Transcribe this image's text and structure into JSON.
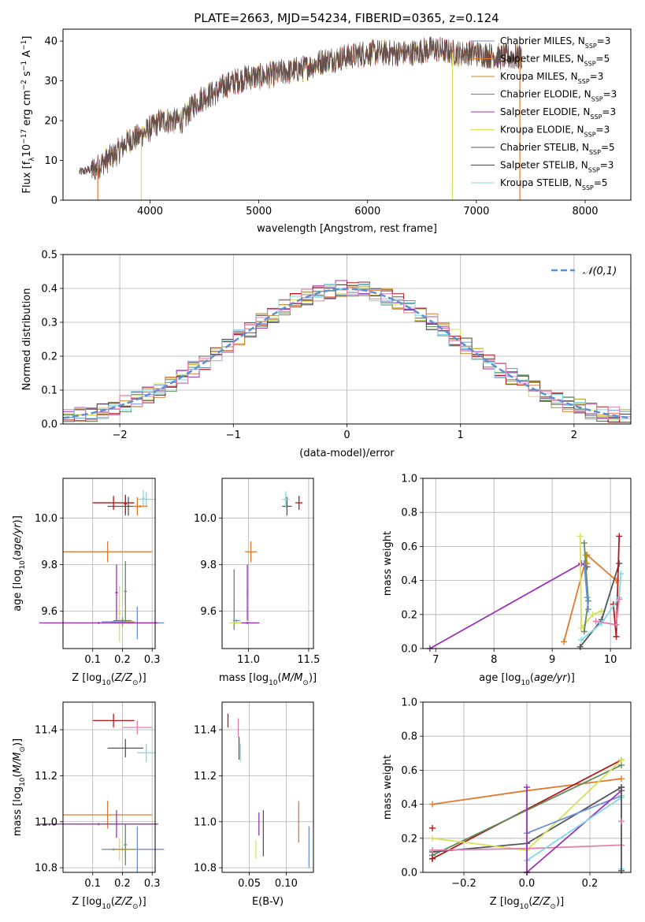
{
  "figure": {
    "title": "PLATE=2663, MJD=54234, FIBERID=0365, z=0.124"
  },
  "series_styles": [
    {
      "name": "Chabrier MILES",
      "nssp": "3",
      "color": "#6b8fd6"
    },
    {
      "name": "Salpeter MILES",
      "nssp": "5",
      "color": "#e07a2c"
    },
    {
      "name": "Kroupa MILES",
      "nssp": "3",
      "color": "#b8901e"
    },
    {
      "name": "Chabrier ELODIE",
      "nssp": "3",
      "color": "#5e8e5e"
    },
    {
      "name": "Salpeter ELODIE",
      "nssp": "3",
      "color": "#9b30b8"
    },
    {
      "name": "Kroupa ELODIE",
      "nssp": "3",
      "color": "#d8e05a"
    },
    {
      "name": "Chabrier STELIB",
      "nssp": "5",
      "color": "#555555"
    },
    {
      "name": "Salpeter STELIB",
      "nssp": "3",
      "color": "#b01a1a"
    },
    {
      "name": "Kroupa STELIB",
      "nssp": "5",
      "color": "#7ed8e8"
    }
  ],
  "chart_data": [
    {
      "id": "spectrum",
      "type": "line",
      "xlabel": "wavelength [Angstrom, rest frame]",
      "ylabel": "Flux [f_λ 10^-17 erg cm^-2 s^-1 A^-1]",
      "xlim": [
        3200,
        8420
      ],
      "ylim": [
        0,
        43
      ],
      "xticks": [
        4000,
        5000,
        6000,
        7000,
        8000
      ],
      "yticks": [
        0,
        10,
        20,
        30,
        40
      ],
      "grid": false,
      "legend": "top-right",
      "observed_continuum": {
        "x": [
          3350,
          3500,
          3600,
          3700,
          3800,
          3900,
          4000,
          4100,
          4200,
          4300,
          4400,
          4500,
          4600,
          4700,
          4800,
          4900,
          5000,
          5200,
          5400,
          5600,
          5800,
          6000,
          6200,
          6400,
          6600,
          6800,
          7000,
          7200,
          7400
        ],
        "y": [
          7,
          8,
          10,
          12,
          15,
          16,
          18,
          20,
          20,
          20,
          24,
          26,
          27,
          29,
          30,
          31,
          31,
          32,
          33,
          35,
          36,
          37,
          37,
          37,
          38,
          37,
          37,
          36,
          36
        ]
      },
      "model_dropouts": [
        {
          "x": 3520,
          "series": 1
        },
        {
          "x": 3920,
          "series": 5
        },
        {
          "x": 6780,
          "series": 5
        },
        {
          "x": 7400,
          "series": 1
        }
      ]
    },
    {
      "id": "residual_hist",
      "type": "line",
      "xlabel": "(data-model)/error",
      "ylabel": "Normed distribution",
      "xlim": [
        -2.5,
        2.5
      ],
      "ylim": [
        0,
        0.5
      ],
      "xticks": [
        -2,
        -1,
        0,
        1,
        2
      ],
      "yticks": [
        0.0,
        0.1,
        0.2,
        0.3,
        0.4,
        0.5
      ],
      "grid": true,
      "legend": "top-right",
      "reference_label": "𝒩(0,1)",
      "reference_color": "#5b8fd6",
      "bins": 50
    },
    {
      "id": "age_vs_Z",
      "type": "scatter",
      "xlabel": "Z [log10(Z/Z⊙)]",
      "ylabel": "age [log10(age/yr)]",
      "xlim": [
        0.0,
        0.31
      ],
      "ylim": [
        9.44,
        10.17
      ],
      "xticks": [
        0.1,
        0.2,
        0.3
      ],
      "yticks": [
        9.6,
        9.8,
        10.0
      ],
      "grid": true,
      "points": [
        {
          "series": 0,
          "x": 0.25,
          "y": 9.55,
          "xerr": 0.09,
          "yerr": 0.07
        },
        {
          "series": 1,
          "x": 0.15,
          "y": 9.855,
          "xerr": 0.15,
          "yerr": 0.045
        },
        {
          "series": 2,
          "x": 0.2,
          "y": 9.555,
          "xerr": 0.04,
          "yerr": 0.02
        },
        {
          "series": 3,
          "x": 0.21,
          "y": 9.685,
          "xerr": 0.005,
          "yerr": 0.13
        },
        {
          "series": 4,
          "x": 0.18,
          "y": 9.68,
          "xerr": 0.005,
          "yerr": 0.12
        },
        {
          "series": 5,
          "x": 0.19,
          "y": 9.59,
          "xerr": 0.005,
          "yerr": 0.12
        },
        {
          "series": 6,
          "x": 0.21,
          "y": 10.05,
          "xerr": 0.06,
          "yerr": 0.04
        },
        {
          "series": 7,
          "x": 0.17,
          "y": 10.065,
          "xerr": 0.07,
          "yerr": 0.03
        },
        {
          "series": 8,
          "x": 0.28,
          "y": 10.08,
          "xerr": 0.03,
          "yerr": 0.03
        },
        {
          "series": 4,
          "x": 0.12,
          "y": 9.55,
          "xerr": 0.2,
          "yerr": 0.005
        },
        {
          "series": 3,
          "x": 0.2,
          "y": 9.56,
          "xerr": 0.03,
          "yerr": 0.005
        },
        {
          "series": 0,
          "x": 0.17,
          "y": 9.555,
          "xerr": 0.04,
          "yerr": 0.005
        },
        {
          "series": 8,
          "x": 0.27,
          "y": 10.085,
          "xerr": 0.005,
          "yerr": 0.035
        },
        {
          "series": 6,
          "x": 0.22,
          "y": 10.05,
          "xerr": 0.005,
          "yerr": 0.04
        },
        {
          "series": 7,
          "x": 0.21,
          "y": 10.06,
          "xerr": 0.005,
          "yerr": 0.04
        },
        {
          "series": 1,
          "x": 0.25,
          "y": 10.05,
          "xerr": 0.005,
          "yerr": 0.04
        },
        {
          "series": 1,
          "x": 0.26,
          "y": 10.05,
          "xerr": 0.025,
          "yerr": 0.005
        }
      ]
    },
    {
      "id": "age_vs_mass",
      "type": "scatter",
      "xlabel": "mass [log10(M/M⊙)]",
      "ylabel": "",
      "xlim": [
        10.78,
        11.54
      ],
      "ylim": [
        9.44,
        10.17
      ],
      "xticks": [
        11.0,
        11.5
      ],
      "yticks": [
        9.6,
        9.8,
        10.0
      ],
      "grid": true,
      "points": [
        {
          "series": 1,
          "x": 11.02,
          "y": 9.855,
          "xerr": 0.05,
          "yerr": 0.045
        },
        {
          "series": 4,
          "x": 10.99,
          "y": 9.68,
          "xerr": 0.005,
          "yerr": 0.12
        },
        {
          "series": 4,
          "x": 10.99,
          "y": 9.55,
          "xerr": 0.1,
          "yerr": 0.005
        },
        {
          "series": 3,
          "x": 10.88,
          "y": 9.65,
          "xerr": 0.005,
          "yerr": 0.13
        },
        {
          "series": 5,
          "x": 10.89,
          "y": 9.55,
          "xerr": 0.05,
          "yerr": 0.005
        },
        {
          "series": 0,
          "x": 10.9,
          "y": 9.56,
          "xerr": 0.03,
          "yerr": 0.005
        },
        {
          "series": 6,
          "x": 11.32,
          "y": 10.05,
          "xerr": 0.04,
          "yerr": 0.04
        },
        {
          "series": 7,
          "x": 11.42,
          "y": 10.065,
          "xerr": 0.03,
          "yerr": 0.03
        },
        {
          "series": 8,
          "x": 11.31,
          "y": 10.08,
          "xerr": 0.03,
          "yerr": 0.035
        }
      ]
    },
    {
      "id": "weight_vs_age",
      "type": "line",
      "xlabel": "age [log10(age/yr)]",
      "ylabel": "mass weight",
      "xlim": [
        6.78,
        10.35
      ],
      "ylim": [
        0.0,
        1.0
      ],
      "xticks": [
        7,
        8,
        9,
        10
      ],
      "yticks": [
        0.0,
        0.2,
        0.4,
        0.6,
        0.8,
        1.0
      ],
      "grid": true,
      "series": [
        {
          "series": 4,
          "x": [
            6.9,
            9.5,
            9.6
          ],
          "y": [
            0.0,
            0.5,
            0.48
          ]
        },
        {
          "series": 1,
          "x": [
            9.2,
            9.6,
            10.1
          ],
          "y": [
            0.04,
            0.55,
            0.4
          ]
        },
        {
          "series": 5,
          "x": [
            9.48,
            9.5,
            9.7,
            9.85
          ],
          "y": [
            0.66,
            0.12,
            0.2,
            0.22
          ]
        },
        {
          "series": 3,
          "x": [
            9.55,
            9.62,
            9.55
          ],
          "y": [
            0.62,
            0.28,
            0.1
          ]
        },
        {
          "series": 0,
          "x": [
            9.55,
            9.6,
            9.62
          ],
          "y": [
            0.5,
            0.3,
            0.23
          ]
        },
        {
          "series": 6,
          "x": [
            9.48,
            9.85,
            10.15
          ],
          "y": [
            0.01,
            0.17,
            0.5
          ]
        },
        {
          "series": 7,
          "x": [
            10.05,
            10.1,
            10.15
          ],
          "y": [
            0.26,
            0.07,
            0.66
          ]
        },
        {
          "series": 2,
          "x": [
            9.58,
            9.6
          ],
          "y": [
            0.55,
            0.5
          ]
        },
        {
          "series": 8,
          "x": [
            9.5,
            9.85,
            10.15,
            10.18
          ],
          "y": [
            0.05,
            0.15,
            0.3,
            0.44
          ]
        },
        {
          "series": 9,
          "x": [
            9.75,
            10.1,
            10.15
          ],
          "y": [
            0.16,
            0.14,
            0.29
          ]
        }
      ]
    },
    {
      "id": "mass_vs_Z",
      "type": "scatter",
      "xlabel": "Z [log10(Z/Z⊙)]",
      "ylabel": "mass [log10(M/M⊙)]",
      "xlim": [
        0.0,
        0.31
      ],
      "ylim": [
        10.78,
        11.52
      ],
      "xticks": [
        0.1,
        0.2,
        0.3
      ],
      "yticks": [
        10.8,
        11.0,
        11.2,
        11.4
      ],
      "grid": true,
      "points": [
        {
          "series": 1,
          "x": 0.15,
          "y": 11.03,
          "xerr": 0.15,
          "yerr": 0.06
        },
        {
          "series": 4,
          "x": 0.12,
          "y": 10.99,
          "xerr": 0.2,
          "yerr": 0.005
        },
        {
          "series": 4,
          "x": 0.18,
          "y": 10.99,
          "xerr": 0.005,
          "yerr": 0.06
        },
        {
          "series": 0,
          "x": 0.17,
          "y": 10.88,
          "xerr": 0.04,
          "yerr": 0.005
        },
        {
          "series": 0,
          "x": 0.25,
          "y": 10.88,
          "xerr": 0.09,
          "yerr": 0.1
        },
        {
          "series": 3,
          "x": 0.21,
          "y": 10.9,
          "xerr": 0.005,
          "yerr": 0.09
        },
        {
          "series": 5,
          "x": 0.19,
          "y": 10.88,
          "xerr": 0.005,
          "yerr": 0.05
        },
        {
          "series": 2,
          "x": 0.2,
          "y": 10.88,
          "xerr": 0.04,
          "yerr": 0.005
        },
        {
          "series": 6,
          "x": 0.21,
          "y": 11.32,
          "xerr": 0.06,
          "yerr": 0.04
        },
        {
          "series": 7,
          "x": 0.17,
          "y": 11.44,
          "xerr": 0.07,
          "yerr": 0.03
        },
        {
          "series": 8,
          "x": 0.28,
          "y": 11.3,
          "xerr": 0.03,
          "yerr": 0.04
        },
        {
          "series": 9,
          "x": 0.25,
          "y": 11.41,
          "xerr": 0.05,
          "yerr": 0.03
        }
      ]
    },
    {
      "id": "mass_vs_ebv",
      "type": "scatter",
      "xlabel": "E(B-V)",
      "ylabel": "",
      "xlim": [
        0.013,
        0.137
      ],
      "ylim": [
        10.78,
        11.52
      ],
      "xticks": [
        0.05,
        0.1
      ],
      "yticks": [
        10.8,
        11.0,
        11.2,
        11.4
      ],
      "grid": true,
      "points": [
        {
          "series": 7,
          "x": 0.021,
          "y": 11.44,
          "xerr": 0.0,
          "yerr": 0.03
        },
        {
          "series": 6,
          "x": 0.036,
          "y": 11.32,
          "xerr": 0.0,
          "yerr": 0.05
        },
        {
          "series": 8,
          "x": 0.038,
          "y": 11.3,
          "xerr": 0.0,
          "yerr": 0.04
        },
        {
          "series": 9,
          "x": 0.035,
          "y": 11.41,
          "xerr": 0.0,
          "yerr": 0.04
        },
        {
          "series": 4,
          "x": 0.063,
          "y": 10.99,
          "xerr": 0.0,
          "yerr": 0.05
        },
        {
          "series": 6,
          "x": 0.069,
          "y": 10.95,
          "xerr": 0.0,
          "yerr": 0.1
        },
        {
          "series": 5,
          "x": 0.059,
          "y": 10.88,
          "xerr": 0.0,
          "yerr": 0.04
        },
        {
          "series": 1,
          "x": 0.117,
          "y": 11.0,
          "xerr": 0.0,
          "yerr": 0.09
        },
        {
          "series": 0,
          "x": 0.131,
          "y": 10.89,
          "xerr": 0.0,
          "yerr": 0.09
        }
      ]
    },
    {
      "id": "weight_vs_Z",
      "type": "line",
      "xlabel": "Z [log10(Z/Z⊙)]",
      "ylabel": "mass weight",
      "xlim": [
        -0.33,
        0.33
      ],
      "ylim": [
        0.0,
        1.0
      ],
      "xticks": [
        -0.2,
        0.0,
        0.2
      ],
      "yticks": [
        0.0,
        0.2,
        0.4,
        0.6,
        0.8,
        1.0
      ],
      "grid": true,
      "series": [
        {
          "series": 1,
          "x": [
            -0.3,
            0.0,
            0.3
          ],
          "y": [
            0.4,
            0.48,
            0.55
          ]
        },
        {
          "series": 7,
          "x": [
            -0.3,
            0.3
          ],
          "y": [
            0.08,
            0.66
          ]
        },
        {
          "series": 3,
          "x": [
            -0.3,
            0.3
          ],
          "y": [
            0.1,
            0.63
          ]
        },
        {
          "series": 6,
          "x": [
            -0.3,
            0.0,
            0.3
          ],
          "y": [
            0.12,
            0.17,
            0.5
          ]
        },
        {
          "series": 5,
          "x": [
            -0.3,
            0.0,
            0.3
          ],
          "y": [
            0.2,
            0.13,
            0.66
          ]
        },
        {
          "series": 9,
          "x": [
            -0.3,
            0.0,
            0.3
          ],
          "y": [
            0.13,
            0.14,
            0.16
          ]
        },
        {
          "series": 0,
          "x": [
            0.0,
            0.3
          ],
          "y": [
            0.23,
            0.45
          ]
        },
        {
          "series": 4,
          "x": [
            0.0,
            0.3
          ],
          "y": [
            0.0,
            0.48
          ]
        },
        {
          "series": 8,
          "x": [
            0.0,
            0.3
          ],
          "y": [
            0.07,
            0.44
          ]
        },
        {
          "series": 4,
          "x": [
            0.0,
            0.0
          ],
          "y": [
            0.0,
            0.5
          ]
        },
        {
          "series": 8,
          "x": [
            0.3,
            0.3
          ],
          "y": [
            0.02,
            0.45
          ]
        },
        {
          "series": 6,
          "x": [
            0.3,
            0.3
          ],
          "y": [
            0.01,
            0.5
          ]
        }
      ],
      "markers": [
        {
          "series": 7,
          "x": -0.3,
          "y": 0.26
        },
        {
          "series": 7,
          "x": -0.3,
          "y": 0.08
        },
        {
          "series": 9,
          "x": 0.3,
          "y": 0.3
        }
      ]
    }
  ]
}
